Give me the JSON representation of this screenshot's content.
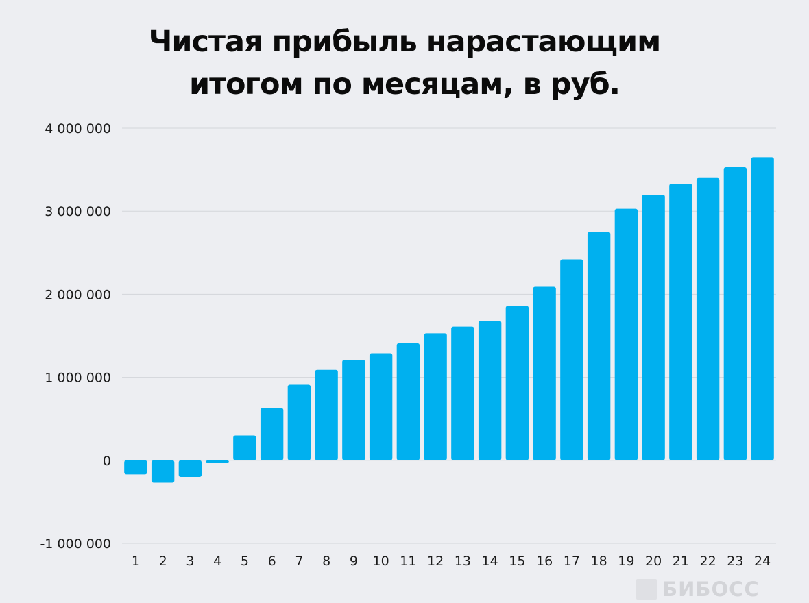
{
  "chart_data": {
    "type": "bar",
    "title_lines": [
      "Чистая прибыль нарастающим",
      "итогом по месяцам, в руб."
    ],
    "categories": [
      "1",
      "2",
      "3",
      "4",
      "5",
      "6",
      "7",
      "8",
      "9",
      "10",
      "11",
      "12",
      "13",
      "14",
      "15",
      "16",
      "17",
      "18",
      "19",
      "20",
      "21",
      "22",
      "23",
      "24"
    ],
    "values": [
      -170000,
      -270000,
      -200000,
      -30000,
      300000,
      630000,
      910000,
      1090000,
      1210000,
      1290000,
      1410000,
      1530000,
      1610000,
      1680000,
      1860000,
      2090000,
      2420000,
      2750000,
      3030000,
      3200000,
      3330000,
      3400000,
      3530000,
      3650000
    ],
    "ylim": [
      -1000000,
      4000000
    ],
    "yticks": [
      -1000000,
      0,
      1000000,
      2000000,
      3000000,
      4000000
    ],
    "ytick_labels": [
      "-1 000 000",
      "0",
      "1 000 000",
      "2 000 000",
      "3 000 000",
      "4 000 000"
    ],
    "xlabel": "",
    "ylabel": "",
    "grid": true,
    "bar_color": "#00b0ef",
    "grid_color": "#d3d5da"
  },
  "watermark": {
    "text": "БИБОСС"
  }
}
